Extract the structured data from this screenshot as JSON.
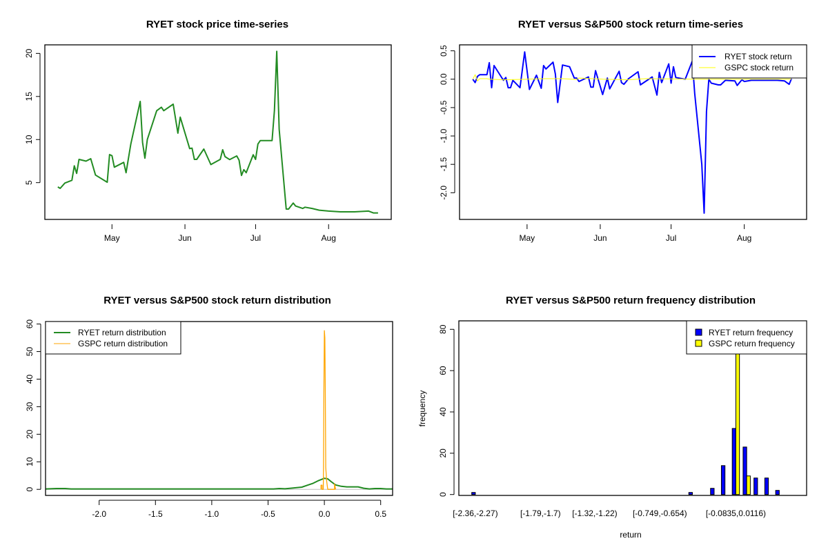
{
  "chart_data": [
    {
      "type": "line",
      "title": "RYET stock price time-series",
      "xlabel": "",
      "ylabel": "",
      "x_ticks": [
        {
          "date": "05-01",
          "label": "May"
        },
        {
          "date": "06-01",
          "label": "Jun"
        },
        {
          "date": "07-01",
          "label": "Jul"
        },
        {
          "date": "08-01",
          "label": "Aug"
        }
      ],
      "y_ticks": [
        5,
        10,
        15,
        20
      ],
      "xlim": [
        "04-02",
        "08-27"
      ],
      "ylim": [
        0.73,
        20.99
      ],
      "color": "#228B22",
      "series": [
        {
          "points": [
            [
              "04-08",
              4.5
            ],
            [
              "04-09",
              4.33
            ],
            [
              "04-11",
              4.95
            ],
            [
              "04-14",
              5.27
            ],
            [
              "04-15",
              6.95
            ],
            [
              "04-16",
              6.07
            ],
            [
              "04-17",
              7.7
            ],
            [
              "04-20",
              7.5
            ],
            [
              "04-22",
              7.78
            ],
            [
              "04-24",
              5.88
            ],
            [
              "04-29",
              5.05
            ],
            [
              "04-30",
              8.26
            ],
            [
              "05-01",
              8.12
            ],
            [
              "05-02",
              6.79
            ],
            [
              "05-06",
              7.35
            ],
            [
              "05-07",
              6.15
            ],
            [
              "05-09",
              9.48
            ],
            [
              "05-13",
              14.42
            ],
            [
              "05-14",
              9.67
            ],
            [
              "05-15",
              7.83
            ],
            [
              "05-16",
              10.0
            ],
            [
              "05-20",
              13.35
            ],
            [
              "05-22",
              13.75
            ],
            [
              "05-23",
              13.35
            ],
            [
              "05-27",
              14.1
            ],
            [
              "05-29",
              10.74
            ],
            [
              "05-30",
              12.6
            ],
            [
              "06-03",
              8.95
            ],
            [
              "06-04",
              9.0
            ],
            [
              "06-05",
              7.7
            ],
            [
              "06-06",
              7.7
            ],
            [
              "06-09",
              8.9
            ],
            [
              "06-12",
              7.1
            ],
            [
              "06-16",
              7.7
            ],
            [
              "06-17",
              8.82
            ],
            [
              "06-18",
              8.02
            ],
            [
              "06-20",
              7.67
            ],
            [
              "06-23",
              8.1
            ],
            [
              "06-24",
              7.6
            ],
            [
              "06-25",
              5.83
            ],
            [
              "06-26",
              6.5
            ],
            [
              "06-27",
              6.15
            ],
            [
              "06-30",
              8.23
            ],
            [
              "07-01",
              7.7
            ],
            [
              "07-02",
              9.48
            ],
            [
              "07-03",
              9.88
            ],
            [
              "07-08",
              9.88
            ],
            [
              "07-09",
              13.35
            ],
            [
              "07-10",
              20.24
            ],
            [
              "07-11",
              11.2
            ],
            [
              "07-14",
              1.93
            ],
            [
              "07-15",
              1.93
            ],
            [
              "07-17",
              2.63
            ],
            [
              "07-18",
              2.28
            ],
            [
              "07-21",
              2.0
            ],
            [
              "07-22",
              2.15
            ],
            [
              "07-25",
              2.0
            ],
            [
              "07-28",
              1.8
            ],
            [
              "08-01",
              1.7
            ],
            [
              "08-06",
              1.61
            ],
            [
              "08-12",
              1.61
            ],
            [
              "08-18",
              1.7
            ],
            [
              "08-20",
              1.48
            ],
            [
              "08-22",
              1.48
            ]
          ]
        }
      ]
    },
    {
      "type": "line",
      "title": "RYET versus S&P500 stock return time-series",
      "xlabel": "",
      "ylabel": "",
      "x_ticks": [
        {
          "date": "05-01",
          "label": "May"
        },
        {
          "date": "06-01",
          "label": "Jun"
        },
        {
          "date": "07-01",
          "label": "Jul"
        },
        {
          "date": "08-01",
          "label": "Aug"
        }
      ],
      "y_ticks": [
        {
          "v": 0.5,
          "label": "0.5"
        },
        {
          "v": 0,
          "label": "0.0"
        },
        {
          "v": -0.5,
          "label": "-0.5"
        },
        {
          "v": -1,
          "label": "-1.0"
        },
        {
          "v": -1.5,
          "label": "-1.5"
        },
        {
          "v": -2,
          "label": "-2.0"
        }
      ],
      "xlim": [
        "04-02",
        "08-27"
      ],
      "ylim": [
        -2.47,
        0.605
      ],
      "legend": {
        "position": "top-right"
      },
      "series": [
        {
          "name": "RYET stock return",
          "color": "#0000FF",
          "points": [
            [
              "04-08",
              0
            ],
            [
              "04-09",
              -0.06
            ],
            [
              "04-10",
              0.05
            ],
            [
              "04-11",
              0.08
            ],
            [
              "04-14",
              0.08
            ],
            [
              "04-15",
              0.29
            ],
            [
              "04-16",
              -0.15
            ],
            [
              "04-17",
              0.24
            ],
            [
              "04-21",
              -0.02
            ],
            [
              "04-22",
              0.03
            ],
            [
              "04-23",
              -0.15
            ],
            [
              "04-24",
              -0.15
            ],
            [
              "04-25",
              -0.02
            ],
            [
              "04-28",
              -0.15
            ],
            [
              "04-30",
              0.48
            ],
            [
              "05-02",
              -0.18
            ],
            [
              "05-05",
              0.07
            ],
            [
              "05-07",
              -0.16
            ],
            [
              "05-08",
              0.24
            ],
            [
              "05-09",
              0.18
            ],
            [
              "05-12",
              0.3
            ],
            [
              "05-13",
              0.09
            ],
            [
              "05-14",
              -0.41
            ],
            [
              "05-16",
              0.25
            ],
            [
              "05-19",
              0.22
            ],
            [
              "05-21",
              0.02
            ],
            [
              "05-22",
              0.02
            ],
            [
              "05-23",
              -0.04
            ],
            [
              "05-27",
              0.04
            ],
            [
              "05-28",
              -0.14
            ],
            [
              "05-29",
              -0.14
            ],
            [
              "05-30",
              0.15
            ],
            [
              "06-02",
              -0.27
            ],
            [
              "06-04",
              0.02
            ],
            [
              "06-05",
              -0.17
            ],
            [
              "06-09",
              0.14
            ],
            [
              "06-10",
              -0.06
            ],
            [
              "06-11",
              -0.09
            ],
            [
              "06-13",
              0.01
            ],
            [
              "06-17",
              0.13
            ],
            [
              "06-18",
              -0.1
            ],
            [
              "06-23",
              0.04
            ],
            [
              "06-25",
              -0.28
            ],
            [
              "06-26",
              0.12
            ],
            [
              "06-27",
              -0.06
            ],
            [
              "06-30",
              0.27
            ],
            [
              "07-01",
              -0.07
            ],
            [
              "07-02",
              0.22
            ],
            [
              "07-03",
              0.03
            ],
            [
              "07-07",
              0
            ],
            [
              "07-10",
              0.32
            ],
            [
              "07-11",
              -0.25
            ],
            [
              "07-14",
              -1.5
            ],
            [
              "07-15",
              -2.36
            ],
            [
              "07-16",
              -0.57
            ],
            [
              "07-17",
              0
            ],
            [
              "07-18",
              -0.07
            ],
            [
              "07-21",
              -0.1
            ],
            [
              "07-22",
              -0.1
            ],
            [
              "07-24",
              -0.02
            ],
            [
              "07-28",
              -0.03
            ],
            [
              "07-29",
              -0.11
            ],
            [
              "07-31",
              -0.01
            ],
            [
              "08-01",
              -0.04
            ],
            [
              "08-04",
              -0.02
            ],
            [
              "08-07",
              -0.02
            ],
            [
              "08-11",
              -0.02
            ],
            [
              "08-15",
              -0.02
            ],
            [
              "08-18",
              -0.03
            ],
            [
              "08-20",
              -0.09
            ],
            [
              "08-21",
              0.01
            ]
          ]
        },
        {
          "name": "GSPC stock return",
          "color": "#FFFF00",
          "points": [
            [
              "04-08",
              0
            ],
            [
              "04-09",
              0.08
            ],
            [
              "04-10",
              -0.03
            ],
            [
              "04-11",
              0.01
            ],
            [
              "04-14",
              0.01
            ],
            [
              "04-15",
              0
            ],
            [
              "04-21",
              -0.01
            ],
            [
              "05-01",
              0
            ],
            [
              "05-09",
              0.01
            ],
            [
              "05-16",
              0.01
            ],
            [
              "05-22",
              -0.005
            ],
            [
              "05-23",
              0.02
            ],
            [
              "06-02",
              0
            ],
            [
              "06-13",
              -0.01
            ],
            [
              "06-20",
              0.01
            ],
            [
              "07-10",
              0
            ],
            [
              "08-21",
              0
            ]
          ]
        }
      ]
    },
    {
      "type": "line",
      "title": "RYET versus S&P500 stock return distribution",
      "xlabel": "",
      "ylabel": "",
      "x_ticks": [
        {
          "v": -2,
          "label": "-2.0"
        },
        {
          "v": -1.5,
          "label": "-1.5"
        },
        {
          "v": -1,
          "label": "-1.0"
        },
        {
          "v": -0.5,
          "label": "-0.5"
        },
        {
          "v": 0,
          "label": "0.0"
        },
        {
          "v": 0.5,
          "label": "0.5"
        }
      ],
      "y_ticks": [
        0,
        10,
        20,
        30,
        40,
        50,
        60
      ],
      "xlim": [
        -2.476,
        0.606
      ],
      "ylim": [
        -2.2,
        60.9
      ],
      "baseline_color": "#BEBEBE",
      "legend": {
        "position": "top-left"
      },
      "series": [
        {
          "name": "RYET return distribution",
          "color": "#228B22",
          "points": [
            [
              -2.476,
              0.15
            ],
            [
              -2.38,
              0.3
            ],
            [
              -2.3,
              0.3
            ],
            [
              -2.25,
              0.15
            ],
            [
              -0.45,
              0.15
            ],
            [
              -0.4,
              0.3
            ],
            [
              -0.35,
              0.2
            ],
            [
              -0.3,
              0.4
            ],
            [
              -0.2,
              0.8
            ],
            [
              -0.15,
              1.5
            ],
            [
              -0.1,
              2.2
            ],
            [
              -0.05,
              3.2
            ],
            [
              0,
              4
            ],
            [
              0.03,
              3.8
            ],
            [
              0.06,
              2.8
            ],
            [
              0.1,
              1.6
            ],
            [
              0.15,
              1.1
            ],
            [
              0.2,
              0.9
            ],
            [
              0.3,
              0.9
            ],
            [
              0.35,
              0.4
            ],
            [
              0.4,
              0.15
            ],
            [
              0.45,
              0.3
            ],
            [
              0.5,
              0.3
            ],
            [
              0.55,
              0.15
            ],
            [
              0.606,
              0.15
            ]
          ]
        },
        {
          "name": "GSPC return distribution",
          "color": "#FFA500",
          "points": [
            [
              -0.03,
              0
            ],
            [
              -0.03,
              1.5
            ],
            [
              -0.02,
              1.5
            ],
            [
              -0.02,
              0
            ],
            [
              -0.01,
              0
            ],
            [
              -0.008,
              6.5
            ],
            [
              -0.004,
              35
            ],
            [
              0,
              57.6
            ],
            [
              0.004,
              55
            ],
            [
              0.008,
              37
            ],
            [
              0.012,
              8
            ],
            [
              0.02,
              3
            ],
            [
              0.03,
              0
            ],
            [
              0.09,
              0
            ],
            [
              0.09,
              2
            ],
            [
              0.1,
              0
            ]
          ]
        }
      ]
    },
    {
      "type": "bar",
      "title": "RYET versus S&P500 return frequency distribution",
      "xlabel": "return",
      "ylabel": "frequency",
      "bin_count": 30,
      "tick_labels": [
        {
          "bin": 0,
          "label": "[-2.36,-2.27)"
        },
        {
          "bin": 6,
          "label": "[-1.79,-1.7)"
        },
        {
          "bin": 11,
          "label": "[-1.32,-1.22)"
        },
        {
          "bin": 17,
          "label": "[-0.749,-0.654)"
        },
        {
          "bin": 24,
          "label": "[-0.0835,0.0116)"
        }
      ],
      "y_ticks": [
        0,
        20,
        40,
        60,
        80
      ],
      "ylim": [
        0,
        84.1
      ],
      "legend": {
        "position": "top-right"
      },
      "series": [
        {
          "name": "RYET return frequency",
          "color": "#0000FF",
          "values": [
            1,
            0,
            0,
            0,
            0,
            0,
            0,
            0,
            0,
            0,
            0,
            0,
            0,
            0,
            0,
            0,
            0,
            0,
            0,
            0,
            1,
            0,
            3,
            14,
            32,
            23,
            8,
            8,
            2,
            0
          ]
        },
        {
          "name": "GSPC return frequency",
          "color": "#FFFF00",
          "values": [
            0,
            0,
            0,
            0,
            0,
            0,
            0,
            0,
            0,
            0,
            0,
            0,
            0,
            0,
            0,
            0,
            0,
            0,
            0,
            0,
            0,
            0,
            0,
            0,
            83,
            9,
            0,
            0,
            0,
            0
          ]
        }
      ]
    }
  ]
}
